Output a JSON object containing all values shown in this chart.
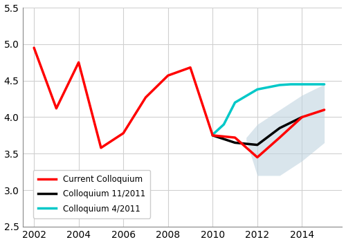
{
  "red_x": [
    2002,
    2003,
    2004,
    2005,
    2006,
    2007,
    2008,
    2009,
    2010,
    2011,
    2012,
    2013,
    2014,
    2015
  ],
  "red_y": [
    4.95,
    4.12,
    4.75,
    3.58,
    3.78,
    4.27,
    4.57,
    4.68,
    3.75,
    3.72,
    3.45,
    3.72,
    4.0,
    4.1
  ],
  "black_x": [
    2010,
    2011,
    2012,
    2013,
    2014
  ],
  "black_y": [
    3.75,
    3.65,
    3.62,
    3.85,
    4.0
  ],
  "cyan_x": [
    2010,
    2010.5,
    2011,
    2012,
    2013,
    2013.5,
    2014,
    2015
  ],
  "cyan_y": [
    3.76,
    3.9,
    4.2,
    4.38,
    4.44,
    4.45,
    4.45,
    4.45
  ],
  "shade_x": [
    2011.5,
    2012,
    2013,
    2014,
    2015,
    2015,
    2014,
    2013,
    2012,
    2011.5
  ],
  "shade_upper": [
    3.72,
    3.9,
    4.1,
    4.3,
    4.45
  ],
  "shade_lower": [
    3.68,
    3.2,
    3.2,
    3.4,
    3.65
  ],
  "red_color": "#ff0000",
  "black_color": "#000000",
  "cyan_color": "#00c8c8",
  "shade_color": "#c0d4e0",
  "shade_alpha": 0.6,
  "xlim": [
    2001.5,
    2015.8
  ],
  "ylim": [
    2.5,
    5.5
  ],
  "xticks": [
    2002,
    2004,
    2006,
    2008,
    2010,
    2012,
    2014
  ],
  "yticks": [
    2.5,
    3.0,
    3.5,
    4.0,
    4.5,
    5.0,
    5.5
  ],
  "legend_labels": [
    "Current Colloquium",
    "Colloquium 11/2011",
    "Colloquium 4/2011"
  ],
  "linewidth": 2.5,
  "background_color": "#ffffff",
  "grid_color": "#d0d0d0"
}
